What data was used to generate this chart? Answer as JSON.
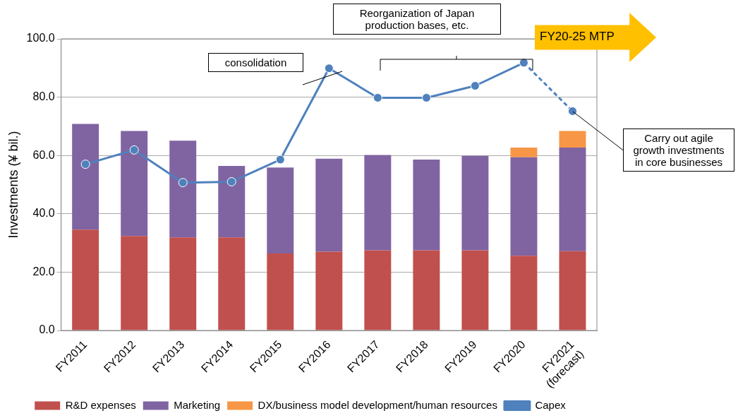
{
  "chart_data": {
    "type": "bar",
    "stacked": true,
    "categories": [
      "FY2011",
      "FY2012",
      "FY2013",
      "FY2014",
      "FY2015",
      "FY2016",
      "FY2017",
      "FY2018",
      "FY2019",
      "FY2020",
      "FY2021\n(forecast)"
    ],
    "series": [
      {
        "name": "R&D expenses",
        "color": "#c0504d",
        "values": [
          34.6,
          32.4,
          31.9,
          31.9,
          26.4,
          27.0,
          27.5,
          27.5,
          27.5,
          25.6,
          27.2
        ]
      },
      {
        "name": "Marketing",
        "color": "#8064a2",
        "values": [
          36.2,
          36.0,
          33.2,
          24.5,
          29.5,
          31.9,
          32.7,
          31.1,
          32.4,
          33.8,
          35.5
        ]
      },
      {
        "name": "DX/business model development/human resources",
        "color": "#f79646",
        "values": [
          null,
          null,
          null,
          null,
          null,
          null,
          null,
          null,
          null,
          3.3,
          5.7
        ]
      },
      {
        "name": "Capex",
        "type": "line",
        "color": "#4f81bd",
        "values": [
          57.0,
          61.9,
          50.7,
          51.0,
          58.6,
          89.9,
          79.8,
          79.8,
          83.9,
          91.8,
          null
        ]
      },
      {
        "type": "line",
        "line_style": "dashed",
        "color": "#4f81bd",
        "values": [
          null,
          null,
          null,
          null,
          null,
          null,
          null,
          null,
          null,
          91.8,
          75.2
        ]
      }
    ],
    "ylabel": "Investments (¥ bil.)",
    "ylim": [
      0,
      100
    ],
    "yticks": [
      {
        "value": 0,
        "label": "0.0"
      },
      {
        "value": 20,
        "label": "20.0"
      },
      {
        "value": 40,
        "label": "40.0"
      },
      {
        "value": 60,
        "label": "60.0"
      },
      {
        "value": 80,
        "label": "80.0"
      },
      {
        "value": 100,
        "label": "100.0"
      }
    ],
    "grid": "y",
    "legend": "bottom",
    "marker": "circle",
    "annotations": [
      "consolidation",
      "Reorganization of Japan production bases, etc.",
      "FY20-25 MTP",
      {
        "text": "Carry out agile growth investments in core businesses",
        "x": "FY2021\n(forecast)",
        "y": 75.2
      }
    ]
  }
}
